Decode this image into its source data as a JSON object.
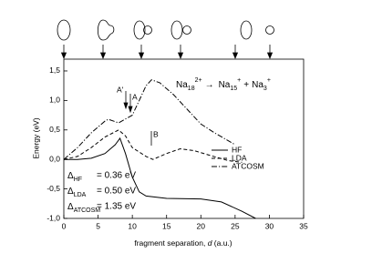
{
  "chart_data": {
    "type": "line",
    "x_label_parts": [
      "fragment separation, ",
      "d",
      " (a.u.)"
    ],
    "y_label": "Energy (eV)",
    "xlim": [
      0,
      35
    ],
    "ylim": [
      -1.0,
      1.7
    ],
    "xticks": [
      0,
      5,
      10,
      15,
      20,
      25,
      30,
      35
    ],
    "yticks": [
      {
        "value": -1.0,
        "label": "-1,0"
      },
      {
        "value": -0.5,
        "label": "-0,5"
      },
      {
        "value": 0.0,
        "label": "0,0"
      },
      {
        "value": 0.5,
        "label": "0,5"
      },
      {
        "value": 1.0,
        "label": "1,0"
      },
      {
        "value": 1.5,
        "label": "1,5"
      }
    ],
    "legend": "right",
    "series": [
      {
        "name": "HF",
        "color": "#000000",
        "style": "solid",
        "x": [
          0,
          2,
          4,
          6,
          7.5,
          8.2,
          9,
          10,
          11,
          12,
          15,
          20,
          23,
          26,
          28
        ],
        "values": [
          0.0,
          0.0,
          0.02,
          0.1,
          0.25,
          0.36,
          0.1,
          -0.3,
          -0.55,
          -0.62,
          -0.66,
          -0.67,
          -0.72,
          -0.88,
          -1.0
        ]
      },
      {
        "name": "LDA",
        "color": "#000000",
        "style": "dashed",
        "x": [
          0,
          2,
          4,
          6,
          8,
          9,
          10,
          12,
          13,
          15,
          17,
          19,
          21,
          24,
          26
        ],
        "values": [
          0.0,
          0.05,
          0.2,
          0.38,
          0.5,
          0.4,
          0.2,
          0.05,
          0.0,
          0.1,
          0.18,
          0.15,
          0.08,
          -0.02,
          -0.05
        ]
      },
      {
        "name": "ATCOSM",
        "color": "#000000",
        "style": "dashdot",
        "x": [
          0,
          2,
          4,
          6,
          6.5,
          8,
          10,
          11,
          12,
          12.8,
          14,
          16,
          18,
          20,
          22,
          25
        ],
        "values": [
          0.0,
          0.2,
          0.45,
          0.65,
          0.68,
          0.62,
          0.75,
          1.0,
          1.25,
          1.35,
          1.3,
          1.1,
          0.85,
          0.6,
          0.45,
          0.25
        ]
      }
    ],
    "annotations": [
      "A'",
      "A",
      "B"
    ],
    "reaction": {
      "a": "Na",
      "a_sub": "18",
      "a_sup": "2+",
      "arrow": "→",
      "b": "Na",
      "b_sub": "15",
      "b_sup": "+",
      "plus": "+",
      "c": "Na",
      "c_sub": "3",
      "c_sup": "+"
    },
    "deltas": [
      {
        "symbol": "Δ",
        "sub": "HF",
        "text": "= 0.36 eV"
      },
      {
        "symbol": "Δ",
        "sub": "LDA",
        "text": "= 0.50 eV"
      },
      {
        "symbol": "Δ",
        "sub": "ATCOSM",
        "text": "= 1.35 eV"
      }
    ]
  }
}
